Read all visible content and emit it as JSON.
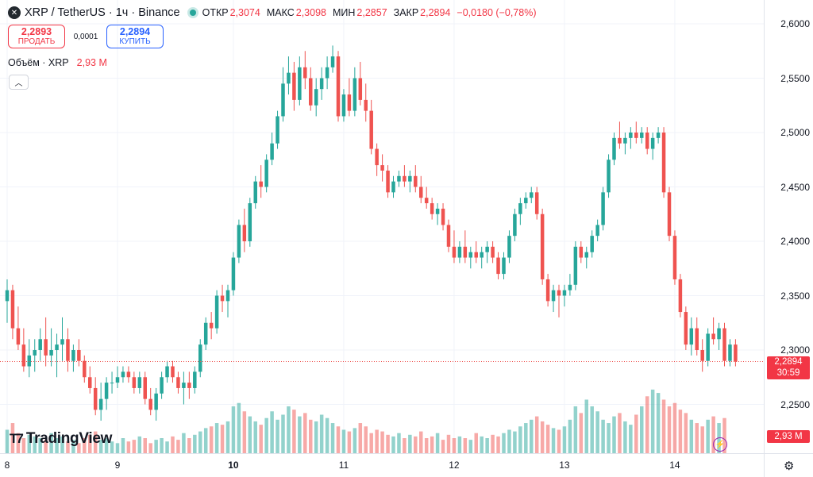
{
  "header": {
    "symbol_icon": "xrp-logo-icon",
    "title": "XRP / TetherUS · 1ч · Binance",
    "open_label": "ОТКР",
    "open": "2,3074",
    "high_label": "МАКС",
    "high": "2,3098",
    "low_label": "МИН",
    "low": "2,2857",
    "close_label": "ЗАКР",
    "close": "2,2894",
    "change": "−0,0180 (−0,78%)"
  },
  "trade": {
    "sell_price": "2,2893",
    "sell_label": "ПРОДАТЬ",
    "spread": "0,0001",
    "buy_price": "2,2894",
    "buy_label": "КУПИТЬ"
  },
  "volume_legend": {
    "label": "Объём · XRP",
    "value": "2,93 M"
  },
  "price_tag": {
    "price": "2,2894",
    "countdown": "30:59"
  },
  "volume_tag": "2,93 M",
  "logo_text": "TradingView",
  "colors": {
    "up": "#26a69a",
    "down": "#ef5350",
    "grid": "#f0f3fa"
  },
  "chart_data": {
    "type": "candlestick",
    "ylim": [
      2.22,
      2.6
    ],
    "y_ticks": [
      "2,6000",
      "2,5500",
      "2,5000",
      "2,4500",
      "2,4000",
      "2,3500",
      "2,3000",
      "2,2500"
    ],
    "x_ticks": [
      {
        "label": "8",
        "idx": 0
      },
      {
        "label": "9",
        "idx": 20
      },
      {
        "label": "10",
        "idx": 41,
        "bold": true
      },
      {
        "label": "11",
        "idx": 61
      },
      {
        "label": "12",
        "idx": 81
      },
      {
        "label": "13",
        "idx": 101
      },
      {
        "label": "14",
        "idx": 121
      }
    ],
    "current_price": 2.2894,
    "grid": true,
    "candles": [
      [
        2.345,
        2.365,
        2.325,
        2.355
      ],
      [
        2.355,
        2.36,
        2.31,
        2.32
      ],
      [
        2.32,
        2.34,
        2.3,
        2.305
      ],
      [
        2.305,
        2.32,
        2.28,
        2.285
      ],
      [
        2.285,
        2.31,
        2.275,
        2.295
      ],
      [
        2.295,
        2.31,
        2.28,
        2.3
      ],
      [
        2.3,
        2.32,
        2.29,
        2.31
      ],
      [
        2.31,
        2.33,
        2.285,
        2.295
      ],
      [
        2.295,
        2.32,
        2.285,
        2.3
      ],
      [
        2.3,
        2.315,
        2.275,
        2.305
      ],
      [
        2.305,
        2.33,
        2.29,
        2.31
      ],
      [
        2.31,
        2.32,
        2.28,
        2.29
      ],
      [
        2.29,
        2.305,
        2.28,
        2.3
      ],
      [
        2.3,
        2.31,
        2.285,
        2.29
      ],
      [
        2.29,
        2.295,
        2.27,
        2.275
      ],
      [
        2.275,
        2.285,
        2.26,
        2.265
      ],
      [
        2.265,
        2.275,
        2.24,
        2.245
      ],
      [
        2.245,
        2.27,
        2.235,
        2.255
      ],
      [
        2.255,
        2.275,
        2.245,
        2.27
      ],
      [
        2.27,
        2.28,
        2.26,
        2.27
      ],
      [
        2.27,
        2.285,
        2.265,
        2.275
      ],
      [
        2.275,
        2.285,
        2.27,
        2.28
      ],
      [
        2.28,
        2.285,
        2.27,
        2.275
      ],
      [
        2.275,
        2.28,
        2.26,
        2.265
      ],
      [
        2.265,
        2.28,
        2.26,
        2.275
      ],
      [
        2.275,
        2.28,
        2.25,
        2.255
      ],
      [
        2.255,
        2.265,
        2.24,
        2.245
      ],
      [
        2.245,
        2.265,
        2.235,
        2.26
      ],
      [
        2.26,
        2.28,
        2.255,
        2.275
      ],
      [
        2.275,
        2.29,
        2.27,
        2.285
      ],
      [
        2.285,
        2.29,
        2.27,
        2.275
      ],
      [
        2.275,
        2.28,
        2.26,
        2.265
      ],
      [
        2.265,
        2.28,
        2.25,
        2.27
      ],
      [
        2.27,
        2.28,
        2.255,
        2.265
      ],
      [
        2.265,
        2.285,
        2.26,
        2.28
      ],
      [
        2.28,
        2.31,
        2.275,
        2.305
      ],
      [
        2.305,
        2.33,
        2.3,
        2.325
      ],
      [
        2.325,
        2.335,
        2.31,
        2.32
      ],
      [
        2.32,
        2.355,
        2.315,
        2.35
      ],
      [
        2.35,
        2.36,
        2.335,
        2.345
      ],
      [
        2.345,
        2.36,
        2.33,
        2.355
      ],
      [
        2.355,
        2.39,
        2.35,
        2.385
      ],
      [
        2.385,
        2.42,
        2.38,
        2.415
      ],
      [
        2.415,
        2.43,
        2.39,
        2.4
      ],
      [
        2.4,
        2.44,
        2.395,
        2.435
      ],
      [
        2.435,
        2.46,
        2.43,
        2.455
      ],
      [
        2.455,
        2.47,
        2.44,
        2.45
      ],
      [
        2.45,
        2.48,
        2.445,
        2.475
      ],
      [
        2.475,
        2.5,
        2.47,
        2.49
      ],
      [
        2.49,
        2.52,
        2.485,
        2.515
      ],
      [
        2.515,
        2.56,
        2.51,
        2.545
      ],
      [
        2.545,
        2.57,
        2.535,
        2.555
      ],
      [
        2.555,
        2.565,
        2.52,
        2.53
      ],
      [
        2.53,
        2.57,
        2.525,
        2.56
      ],
      [
        2.56,
        2.575,
        2.54,
        2.55
      ],
      [
        2.55,
        2.56,
        2.52,
        2.525
      ],
      [
        2.525,
        2.55,
        2.515,
        2.54
      ],
      [
        2.54,
        2.56,
        2.53,
        2.55
      ],
      [
        2.55,
        2.57,
        2.54,
        2.56
      ],
      [
        2.56,
        2.58,
        2.555,
        2.57
      ],
      [
        2.57,
        2.575,
        2.51,
        2.515
      ],
      [
        2.515,
        2.54,
        2.51,
        2.535
      ],
      [
        2.535,
        2.55,
        2.515,
        2.52
      ],
      [
        2.52,
        2.56,
        2.515,
        2.55
      ],
      [
        2.55,
        2.565,
        2.525,
        2.53
      ],
      [
        2.53,
        2.545,
        2.51,
        2.52
      ],
      [
        2.52,
        2.53,
        2.48,
        2.485
      ],
      [
        2.485,
        2.49,
        2.46,
        2.47
      ],
      [
        2.47,
        2.48,
        2.455,
        2.465
      ],
      [
        2.465,
        2.47,
        2.44,
        2.445
      ],
      [
        2.445,
        2.46,
        2.44,
        2.455
      ],
      [
        2.455,
        2.465,
        2.45,
        2.46
      ],
      [
        2.46,
        2.47,
        2.45,
        2.455
      ],
      [
        2.455,
        2.465,
        2.445,
        2.46
      ],
      [
        2.46,
        2.47,
        2.445,
        2.45
      ],
      [
        2.45,
        2.46,
        2.435,
        2.44
      ],
      [
        2.44,
        2.45,
        2.43,
        2.435
      ],
      [
        2.435,
        2.44,
        2.42,
        2.425
      ],
      [
        2.425,
        2.435,
        2.415,
        2.43
      ],
      [
        2.43,
        2.435,
        2.41,
        2.415
      ],
      [
        2.415,
        2.42,
        2.39,
        2.395
      ],
      [
        2.395,
        2.41,
        2.38,
        2.385
      ],
      [
        2.385,
        2.4,
        2.38,
        2.395
      ],
      [
        2.395,
        2.41,
        2.38,
        2.385
      ],
      [
        2.385,
        2.395,
        2.375,
        2.39
      ],
      [
        2.39,
        2.4,
        2.38,
        2.385
      ],
      [
        2.385,
        2.395,
        2.375,
        2.39
      ],
      [
        2.39,
        2.4,
        2.38,
        2.395
      ],
      [
        2.395,
        2.4,
        2.38,
        2.385
      ],
      [
        2.385,
        2.39,
        2.365,
        2.37
      ],
      [
        2.37,
        2.39,
        2.365,
        2.385
      ],
      [
        2.385,
        2.41,
        2.38,
        2.405
      ],
      [
        2.405,
        2.43,
        2.4,
        2.425
      ],
      [
        2.425,
        2.44,
        2.415,
        2.435
      ],
      [
        2.435,
        2.445,
        2.43,
        2.44
      ],
      [
        2.44,
        2.45,
        2.435,
        2.445
      ],
      [
        2.445,
        2.45,
        2.42,
        2.425
      ],
      [
        2.425,
        2.43,
        2.36,
        2.365
      ],
      [
        2.365,
        2.37,
        2.34,
        2.345
      ],
      [
        2.345,
        2.36,
        2.335,
        2.355
      ],
      [
        2.355,
        2.36,
        2.33,
        2.35
      ],
      [
        2.35,
        2.36,
        2.34,
        2.355
      ],
      [
        2.355,
        2.37,
        2.35,
        2.36
      ],
      [
        2.36,
        2.4,
        2.355,
        2.395
      ],
      [
        2.395,
        2.4,
        2.38,
        2.385
      ],
      [
        2.385,
        2.395,
        2.375,
        2.39
      ],
      [
        2.39,
        2.41,
        2.385,
        2.405
      ],
      [
        2.405,
        2.42,
        2.4,
        2.415
      ],
      [
        2.415,
        2.45,
        2.41,
        2.445
      ],
      [
        2.445,
        2.48,
        2.44,
        2.475
      ],
      [
        2.475,
        2.5,
        2.47,
        2.495
      ],
      [
        2.495,
        2.51,
        2.485,
        2.49
      ],
      [
        2.49,
        2.5,
        2.48,
        2.495
      ],
      [
        2.495,
        2.505,
        2.485,
        2.5
      ],
      [
        2.5,
        2.51,
        2.49,
        2.495
      ],
      [
        2.495,
        2.505,
        2.49,
        2.5
      ],
      [
        2.5,
        2.505,
        2.48,
        2.485
      ],
      [
        2.485,
        2.5,
        2.475,
        2.495
      ],
      [
        2.495,
        2.505,
        2.49,
        2.5
      ],
      [
        2.5,
        2.505,
        2.44,
        2.445
      ],
      [
        2.445,
        2.45,
        2.4,
        2.405
      ],
      [
        2.405,
        2.41,
        2.36,
        2.365
      ],
      [
        2.365,
        2.37,
        2.33,
        2.335
      ],
      [
        2.335,
        2.34,
        2.3,
        2.305
      ],
      [
        2.305,
        2.33,
        2.295,
        2.32
      ],
      [
        2.32,
        2.33,
        2.295,
        2.3
      ],
      [
        2.3,
        2.31,
        2.28,
        2.29
      ],
      [
        2.29,
        2.32,
        2.285,
        2.315
      ],
      [
        2.315,
        2.33,
        2.305,
        2.31
      ],
      [
        2.31,
        2.325,
        2.3,
        2.32
      ],
      [
        2.32,
        2.325,
        2.285,
        2.29
      ],
      [
        2.29,
        2.31,
        2.285,
        2.305
      ],
      [
        2.305,
        2.31,
        2.285,
        2.2894
      ]
    ],
    "volume": {
      "label": "Объём · XRP",
      "ylim": [
        0,
        55
      ],
      "values": [
        14,
        18,
        12,
        9,
        11,
        10,
        9,
        8,
        12,
        9,
        10,
        7,
        8,
        6,
        9,
        11,
        13,
        8,
        9,
        7,
        6,
        9,
        7,
        8,
        10,
        9,
        6,
        8,
        9,
        7,
        10,
        8,
        12,
        9,
        11,
        13,
        15,
        16,
        18,
        17,
        19,
        28,
        30,
        25,
        22,
        19,
        17,
        21,
        25,
        20,
        23,
        28,
        26,
        22,
        24,
        20,
        19,
        23,
        21,
        18,
        16,
        14,
        13,
        15,
        18,
        16,
        12,
        14,
        13,
        11,
        10,
        12,
        9,
        11,
        10,
        13,
        9,
        10,
        12,
        8,
        11,
        9,
        10,
        9,
        8,
        12,
        10,
        9,
        11,
        10,
        12,
        14,
        13,
        16,
        18,
        20,
        22,
        19,
        17,
        15,
        14,
        16,
        20,
        28,
        24,
        32,
        28,
        25,
        20,
        18,
        22,
        24,
        19,
        17,
        23,
        28,
        34,
        38,
        36,
        32,
        28,
        30,
        26,
        24,
        20,
        18,
        16,
        20,
        22,
        18,
        21
      ]
    }
  }
}
